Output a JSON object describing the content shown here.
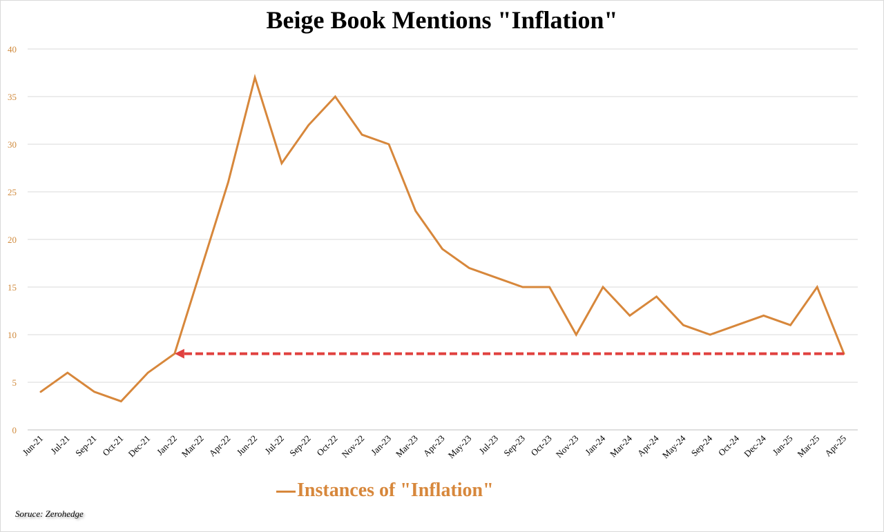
{
  "chart_data": {
    "type": "line",
    "title": "Beige Book Mentions \"Inflation\"",
    "xlabel": "",
    "ylabel": "",
    "categories": [
      "Jun-21",
      "Jul-21",
      "Sep-21",
      "Oct-21",
      "Dec-21",
      "Jan-22",
      "Mar-22",
      "Apr-22",
      "Jun-22",
      "Jul-22",
      "Sep-22",
      "Oct-22",
      "Nov-22",
      "Jan-23",
      "Mar-23",
      "Apr-23",
      "May-23",
      "Jul-23",
      "Sep-23",
      "Oct-23",
      "Nov-23",
      "Jan-24",
      "Mar-24",
      "Apr-24",
      "May-24",
      "Sep-24",
      "Oct-24",
      "Dec-24",
      "Jan-25",
      "Mar-25",
      "Apr-25"
    ],
    "series": [
      {
        "name": "Instances of \"Inflation\"",
        "color": "#d7873b",
        "values": [
          4,
          6,
          4,
          3,
          6,
          8,
          17,
          26,
          37,
          28,
          32,
          35,
          31,
          30,
          23,
          19,
          17,
          16,
          15,
          15,
          10,
          15,
          12,
          14,
          11,
          10,
          11,
          12,
          11,
          15,
          8
        ]
      }
    ],
    "ylim": [
      0,
      40
    ],
    "yticks": [
      0,
      5,
      10,
      15,
      20,
      25,
      30,
      35,
      40
    ],
    "grid": true,
    "legend_position": "bottom",
    "annotation": {
      "type": "dashed-arrow",
      "color": "#e0413f",
      "y": 8,
      "from_category": "Apr-25",
      "to_category": "Jan-22"
    }
  },
  "source_note": "Soruce: Zerohedge"
}
